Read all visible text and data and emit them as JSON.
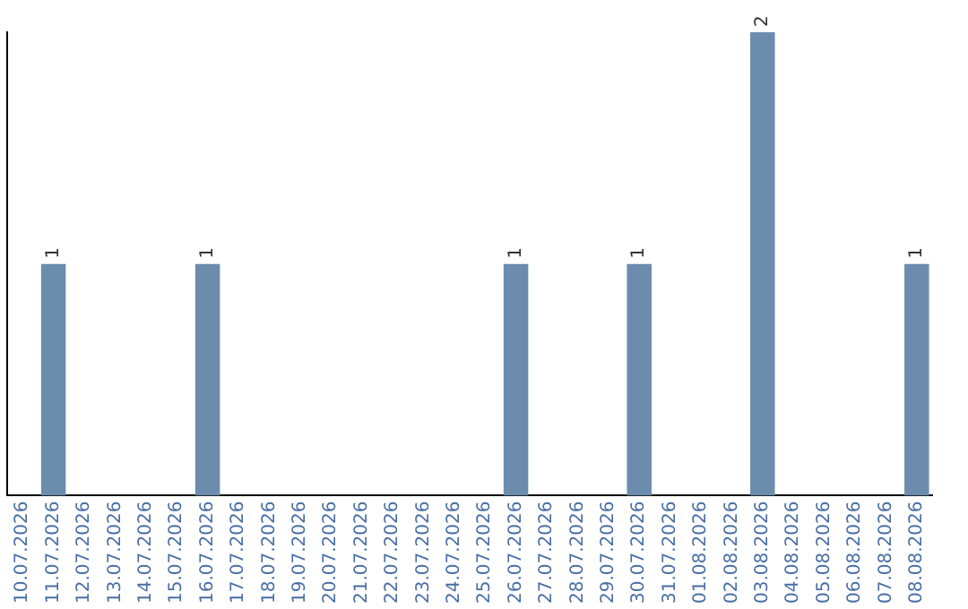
{
  "chart_data": {
    "type": "bar",
    "categories": [
      "10.07.2026",
      "11.07.2026",
      "12.07.2026",
      "13.07.2026",
      "14.07.2026",
      "15.07.2026",
      "16.07.2026",
      "17.07.2026",
      "18.07.2026",
      "19.07.2026",
      "20.07.2026",
      "21.07.2026",
      "22.07.2026",
      "23.07.2026",
      "24.07.2026",
      "25.07.2026",
      "26.07.2026",
      "27.07.2026",
      "28.07.2026",
      "29.07.2026",
      "30.07.2026",
      "31.07.2026",
      "01.08.2026",
      "02.08.2026",
      "03.08.2026",
      "04.08.2026",
      "05.08.2026",
      "06.08.2026",
      "07.08.2026",
      "08.08.2026"
    ],
    "values": [
      0,
      1,
      0,
      0,
      0,
      0,
      1,
      0,
      0,
      0,
      0,
      0,
      0,
      0,
      0,
      0,
      1,
      0,
      0,
      0,
      1,
      0,
      0,
      0,
      2,
      0,
      0,
      0,
      0,
      1
    ],
    "value_labels": [
      null,
      "1",
      null,
      null,
      null,
      null,
      "1",
      null,
      null,
      null,
      null,
      null,
      null,
      null,
      null,
      null,
      "1",
      null,
      null,
      null,
      "1",
      null,
      null,
      null,
      "2",
      null,
      null,
      null,
      null,
      "1"
    ],
    "color": "#6b8cad",
    "tick_labels": "x",
    "grid": false,
    "legend": false
  }
}
